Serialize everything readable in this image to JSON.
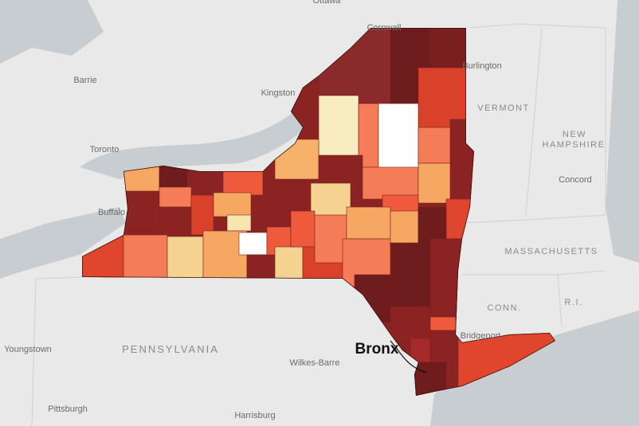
{
  "map": {
    "places": [
      "Ottawa",
      "Cornwall",
      "Burlington",
      "Barrie",
      "Kingston",
      "Toronto",
      "Buffalo",
      "Concord",
      "Youngstown",
      "Pittsburgh",
      "Harrisburg",
      "Wilkes-Barre",
      "Bridgeport"
    ],
    "regions": [
      "VERMONT",
      "NEW",
      "HAMPSHIRE",
      "MASSACHUSETTS",
      "CONN.",
      "R.I.",
      "PENNSYLVANIA"
    ],
    "callout": "Bronx"
  }
}
